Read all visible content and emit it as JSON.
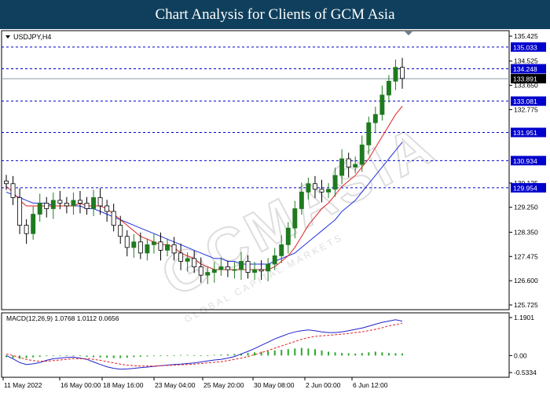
{
  "banner_title": "Chart Analysis for Clients of GCM Asia",
  "symbol_label": "USDJPY,H4",
  "macd_label": "MACD(12,26,9) 1.0768 1.0112 0.0656",
  "watermark": "GCMASIA",
  "watermark_sub": "GLOBAL CAPITAL MARKETS",
  "colors": {
    "banner": "#0f3f5c",
    "bull_candle": "#1f7a1f",
    "bear_candle": "#000000",
    "ma_fast": "#dd2222",
    "ma_slow": "#2233dd",
    "levels": "#0000cc",
    "macd_hist": "#2ea82e",
    "macd_line": "#2222cc",
    "signal_line": "#dd2222"
  },
  "chart_data": {
    "type": "candlestick",
    "title": "USDJPY,H4",
    "x_tick_labels": [
      "11 May 2022",
      "16 May 00:00",
      "18 May 16:00",
      "23 May 04:00",
      "25 May 20:00",
      "30 May 08:00",
      "2 Jun 00:00",
      "6 Jun 12:00"
    ],
    "y_tick_labels": [
      "135.425",
      "134.525",
      "133.650",
      "132.775",
      "130.125",
      "129.250",
      "128.350",
      "127.475",
      "126.600",
      "125.725"
    ],
    "y_range": [
      125.725,
      135.425
    ],
    "current_price": "133.891",
    "levels": [
      {
        "label": "135.033",
        "value": 135.033
      },
      {
        "label": "134.248",
        "value": 134.248
      },
      {
        "label": "133.081",
        "value": 133.081
      },
      {
        "label": "131.951",
        "value": 131.951
      },
      {
        "label": "130.934",
        "value": 130.934
      },
      {
        "label": "129.954",
        "value": 129.954
      }
    ],
    "close": [
      130.1,
      129.6,
      128.6,
      128.3,
      129.0,
      129.4,
      129.2,
      129.5,
      129.4,
      129.3,
      129.5,
      129.4,
      129.2,
      129.6,
      129.3,
      129.1,
      128.6,
      128.2,
      127.8,
      128.0,
      127.6,
      127.9,
      128.0,
      127.7,
      127.9,
      127.6,
      127.3,
      127.4,
      127.1,
      126.8,
      126.9,
      127.0,
      127.1,
      127.0,
      127.0,
      127.3,
      126.9,
      127.0,
      126.95,
      127.2,
      127.5,
      127.9,
      128.5,
      129.2,
      129.8,
      130.1,
      129.9,
      129.8,
      129.9,
      130.4,
      131.0,
      130.7,
      130.8,
      131.5,
      132.3,
      132.6,
      133.3,
      133.8,
      134.3,
      133.9
    ],
    "ma_fast": [
      130.0,
      129.8,
      129.5,
      129.3,
      129.3,
      129.3,
      129.3,
      129.3,
      129.3,
      129.3,
      129.3,
      129.4,
      129.3,
      129.3,
      129.3,
      129.2,
      129.0,
      128.8,
      128.6,
      128.4,
      128.2,
      128.1,
      128.0,
      127.9,
      127.9,
      127.8,
      127.6,
      127.5,
      127.4,
      127.2,
      127.1,
      127.0,
      127.0,
      127.0,
      127.0,
      127.0,
      127.0,
      127.0,
      127.0,
      127.0,
      127.1,
      127.3,
      127.5,
      127.8,
      128.2,
      128.6,
      128.9,
      129.2,
      129.4,
      129.7,
      130.0,
      130.2,
      130.4,
      130.7,
      131.0,
      131.4,
      131.8,
      132.2,
      132.6,
      132.9
    ],
    "ma_slow": [
      129.8,
      129.7,
      129.6,
      129.5,
      129.4,
      129.4,
      129.4,
      129.3,
      129.3,
      129.3,
      129.3,
      129.3,
      129.2,
      129.2,
      129.1,
      129.0,
      128.9,
      128.8,
      128.7,
      128.6,
      128.5,
      128.4,
      128.3,
      128.2,
      128.1,
      128.0,
      127.9,
      127.8,
      127.7,
      127.6,
      127.5,
      127.4,
      127.4,
      127.3,
      127.3,
      127.2,
      127.2,
      127.2,
      127.2,
      127.2,
      127.3,
      127.4,
      127.5,
      127.6,
      127.8,
      128.0,
      128.2,
      128.4,
      128.6,
      128.8,
      129.1,
      129.3,
      129.5,
      129.8,
      130.1,
      130.4,
      130.7,
      131.0,
      131.3,
      131.6
    ],
    "macd_y_tick_labels": [
      "1.1901",
      "0.00",
      "-0.5334"
    ],
    "macd_range": [
      -0.5334,
      1.1901
    ],
    "macd_hist": [
      -0.05,
      -0.08,
      -0.1,
      -0.08,
      -0.06,
      -0.04,
      -0.02,
      -0.01,
      0.0,
      0.01,
      0.0,
      -0.02,
      -0.04,
      -0.05,
      -0.06,
      -0.07,
      -0.08,
      -0.08,
      -0.07,
      -0.05,
      -0.04,
      -0.03,
      -0.02,
      -0.01,
      0.0,
      0.01,
      0.02,
      0.02,
      0.01,
      0.0,
      0.01,
      0.02,
      0.03,
      0.04,
      0.05,
      0.06,
      0.08,
      0.1,
      0.12,
      0.14,
      0.16,
      0.18,
      0.2,
      0.22,
      0.24,
      0.22,
      0.2,
      0.16,
      0.12,
      0.1,
      0.08,
      0.07,
      0.06,
      0.08,
      0.1,
      0.12,
      0.1,
      0.08,
      0.07,
      0.0656
    ],
    "macd_line": [
      0.0,
      -0.1,
      -0.22,
      -0.28,
      -0.26,
      -0.22,
      -0.15,
      -0.1,
      -0.08,
      -0.06,
      -0.05,
      -0.08,
      -0.12,
      -0.2,
      -0.28,
      -0.35,
      -0.4,
      -0.43,
      -0.42,
      -0.4,
      -0.38,
      -0.36,
      -0.34,
      -0.32,
      -0.3,
      -0.28,
      -0.27,
      -0.25,
      -0.23,
      -0.2,
      -0.17,
      -0.14,
      -0.12,
      -0.08,
      -0.03,
      0.05,
      0.13,
      0.22,
      0.32,
      0.42,
      0.52,
      0.6,
      0.68,
      0.74,
      0.78,
      0.8,
      0.78,
      0.74,
      0.72,
      0.72,
      0.74,
      0.78,
      0.82,
      0.86,
      0.92,
      0.98,
      1.04,
      1.08,
      1.12,
      1.0768
    ],
    "signal_line": [
      0.05,
      0.0,
      -0.06,
      -0.12,
      -0.16,
      -0.18,
      -0.18,
      -0.16,
      -0.14,
      -0.12,
      -0.1,
      -0.1,
      -0.1,
      -0.12,
      -0.15,
      -0.19,
      -0.23,
      -0.27,
      -0.3,
      -0.32,
      -0.33,
      -0.33,
      -0.33,
      -0.32,
      -0.31,
      -0.3,
      -0.29,
      -0.28,
      -0.27,
      -0.25,
      -0.23,
      -0.21,
      -0.19,
      -0.16,
      -0.12,
      -0.08,
      -0.03,
      0.03,
      0.09,
      0.16,
      0.23,
      0.3,
      0.37,
      0.44,
      0.51,
      0.56,
      0.6,
      0.62,
      0.63,
      0.65,
      0.67,
      0.69,
      0.72,
      0.74,
      0.78,
      0.82,
      0.87,
      0.93,
      0.97,
      1.0112
    ]
  }
}
